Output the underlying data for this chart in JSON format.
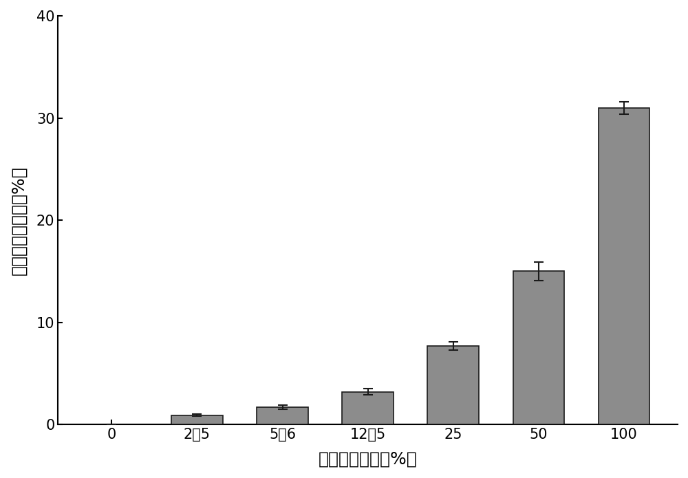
{
  "categories": [
    "0",
    "2．5",
    "5．6",
    "12．5",
    "25",
    "50",
    "100"
  ],
  "values": [
    0,
    0.9,
    1.7,
    3.2,
    7.7,
    15.0,
    31.0
  ],
  "errors": [
    0,
    0.1,
    0.2,
    0.3,
    0.4,
    0.9,
    0.6
  ],
  "bar_color": "#8c8c8c",
  "bar_edgecolor": "#1a1a1a",
  "background_color": "#ffffff",
  "ylabel": "花粉离体萌发率（%）",
  "xlabel": "活性花粉比例（%）",
  "ylim": [
    0,
    40
  ],
  "yticks": [
    0,
    10,
    20,
    30,
    40
  ],
  "bar_width": 0.6,
  "ylabel_fontsize": 18,
  "xlabel_fontsize": 18,
  "tick_fontsize": 15,
  "error_capsize": 5,
  "error_linewidth": 1.5,
  "error_color": "#1a1a1a"
}
